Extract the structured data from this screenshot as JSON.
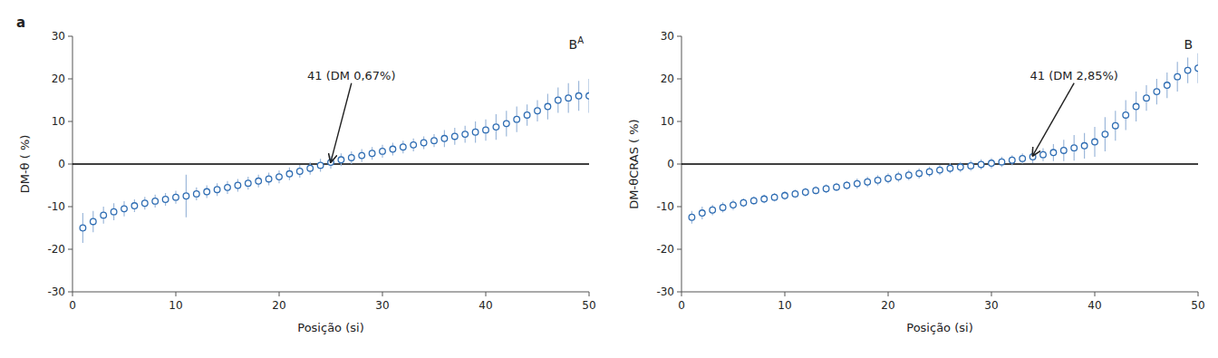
{
  "chart_data": [
    {
      "type": "scatter",
      "xlabel": "Posição (si)",
      "ylabel": "DM-θ ( %)",
      "corner_label": "B",
      "corner_superscript": "A",
      "panel_label": "a",
      "hline": 0,
      "annotations": [
        {
          "text": "41 (DM 0,67%)",
          "x": 25,
          "y": 0.5,
          "text_x": 27,
          "text_y": 19
        }
      ],
      "xlim": [
        0,
        50
      ],
      "ylim": [
        -30,
        30
      ],
      "xticks": [
        0,
        10,
        20,
        30,
        40,
        50
      ],
      "yticks": [
        -30,
        -20,
        -10,
        0,
        10,
        20,
        30
      ],
      "marker": "circle",
      "x": [
        1,
        2,
        3,
        4,
        5,
        6,
        7,
        8,
        9,
        10,
        11,
        12,
        13,
        14,
        15,
        16,
        17,
        18,
        19,
        20,
        21,
        22,
        23,
        24,
        25,
        26,
        27,
        28,
        29,
        30,
        31,
        32,
        33,
        34,
        35,
        36,
        37,
        38,
        39,
        40,
        41,
        42,
        43,
        44,
        45,
        46,
        47,
        48,
        49,
        50
      ],
      "values": [
        -15.0,
        -13.5,
        -12.0,
        -11.2,
        -10.5,
        -9.8,
        -9.2,
        -8.7,
        -8.3,
        -7.8,
        -7.5,
        -7.0,
        -6.5,
        -6.0,
        -5.5,
        -5.0,
        -4.5,
        -4.0,
        -3.5,
        -3.0,
        -2.3,
        -1.7,
        -1.0,
        -0.3,
        0.4,
        1.0,
        1.5,
        2.0,
        2.5,
        3.0,
        3.5,
        4.0,
        4.5,
        5.0,
        5.5,
        6.0,
        6.5,
        7.0,
        7.5,
        8.0,
        8.7,
        9.5,
        10.5,
        11.5,
        12.5,
        13.5,
        15.0,
        15.5,
        16.0,
        16.0
      ],
      "errors": [
        3.5,
        2.5,
        2.0,
        2.0,
        1.8,
        1.5,
        1.5,
        1.5,
        1.5,
        1.5,
        5.0,
        1.5,
        1.5,
        1.5,
        1.5,
        1.5,
        1.5,
        1.5,
        1.5,
        1.5,
        1.5,
        1.5,
        1.5,
        1.5,
        1.5,
        1.5,
        1.5,
        1.5,
        1.5,
        1.5,
        1.5,
        1.5,
        1.5,
        1.5,
        1.5,
        2.0,
        2.0,
        2.0,
        2.5,
        2.5,
        3.0,
        3.0,
        3.0,
        2.5,
        2.5,
        3.0,
        3.0,
        3.5,
        3.5,
        4.0
      ]
    },
    {
      "type": "scatter",
      "xlabel": "Posição (si)",
      "ylabel": "DM-θCRAS ( %)",
      "corner_label": "B",
      "hline": 0,
      "annotations": [
        {
          "text": "41 (DM 2,85%)",
          "x": 34,
          "y": 2.0,
          "text_x": 38,
          "text_y": 19
        }
      ],
      "xlim": [
        0,
        50
      ],
      "ylim": [
        -30,
        30
      ],
      "xticks": [
        0,
        10,
        20,
        30,
        40,
        50
      ],
      "yticks": [
        -30,
        -20,
        -10,
        0,
        10,
        20,
        30
      ],
      "marker": "circle",
      "x": [
        1,
        2,
        3,
        4,
        5,
        6,
        7,
        8,
        9,
        10,
        11,
        12,
        13,
        14,
        15,
        16,
        17,
        18,
        19,
        20,
        21,
        22,
        23,
        24,
        25,
        26,
        27,
        28,
        29,
        30,
        31,
        32,
        33,
        34,
        35,
        36,
        37,
        38,
        39,
        40,
        41,
        42,
        43,
        44,
        45,
        46,
        47,
        48,
        49,
        50
      ],
      "values": [
        -12.5,
        -11.5,
        -10.8,
        -10.2,
        -9.6,
        -9.1,
        -8.6,
        -8.2,
        -7.8,
        -7.4,
        -7.0,
        -6.6,
        -6.2,
        -5.8,
        -5.4,
        -5.0,
        -4.6,
        -4.2,
        -3.8,
        -3.4,
        -3.0,
        -2.6,
        -2.2,
        -1.8,
        -1.4,
        -1.0,
        -0.7,
        -0.4,
        -0.1,
        0.2,
        0.5,
        0.9,
        1.3,
        1.7,
        2.2,
        2.7,
        3.2,
        3.8,
        4.3,
        5.2,
        7.0,
        9.0,
        11.5,
        13.5,
        15.5,
        17.0,
        18.5,
        20.5,
        22.0,
        22.5
      ],
      "errors": [
        1.5,
        1.5,
        1.2,
        1.2,
        1.2,
        1.0,
        1.0,
        1.0,
        1.0,
        1.0,
        1.0,
        1.0,
        1.0,
        1.0,
        1.0,
        1.0,
        1.2,
        1.2,
        1.2,
        1.2,
        1.2,
        1.2,
        1.2,
        1.2,
        1.2,
        1.2,
        1.2,
        1.2,
        1.2,
        1.2,
        1.2,
        1.2,
        1.2,
        1.5,
        1.5,
        2.0,
        2.5,
        3.0,
        3.0,
        3.5,
        4.0,
        3.5,
        3.5,
        3.5,
        3.0,
        3.0,
        3.0,
        3.5,
        3.0,
        3.5
      ]
    }
  ]
}
